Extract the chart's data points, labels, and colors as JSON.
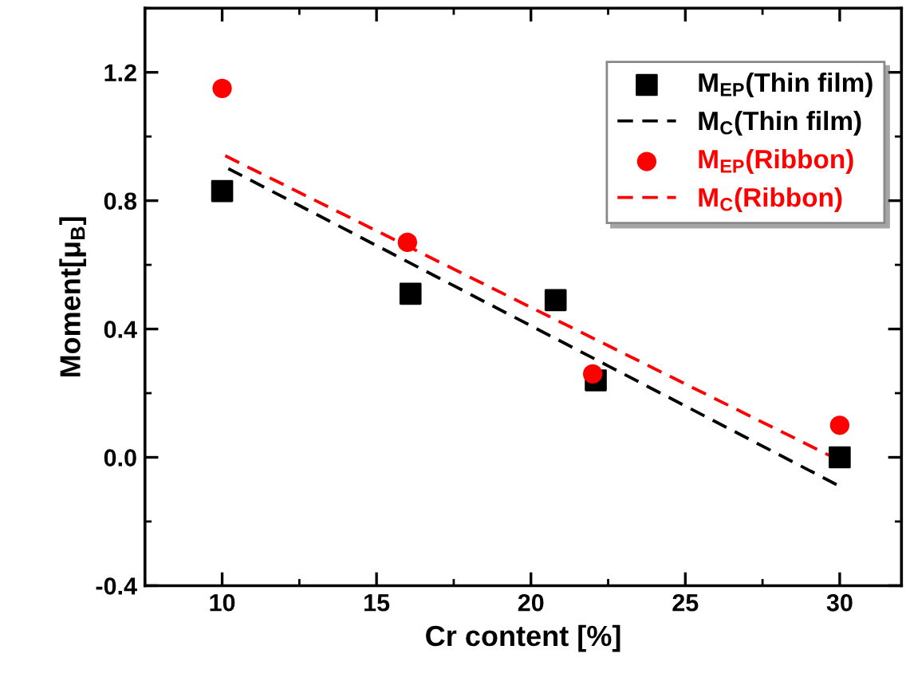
{
  "chart_data": {
    "type": "scatter",
    "xlabel": "Cr content [%]",
    "ylabel": "Moment[μ$_{B}$]",
    "xlim": [
      7.5,
      32
    ],
    "ylim": [
      -0.4,
      1.4
    ],
    "xticks": [
      10,
      15,
      20,
      25,
      30
    ],
    "yticks": [
      -0.4,
      {
        "value": 0,
        "label": "0.0"
      },
      0.4,
      0.8,
      1.2
    ],
    "legend": "top right",
    "grid": false,
    "series": [
      {
        "name": "M$_{EP}$(Thin film)",
        "marker": "square",
        "color": "#000000",
        "x": [
          10,
          16.1,
          20.8,
          22.1,
          30
        ],
        "values": [
          0.83,
          0.51,
          0.49,
          0.24,
          0.0
        ]
      },
      {
        "name": "M$_{C}$(Thin film)",
        "type": "line",
        "marker": "none",
        "line_style": "dashed",
        "color": "#000000",
        "x": [
          10.2,
          30
        ],
        "values": [
          0.9,
          -0.09
        ]
      },
      {
        "name": "M$_{EP}$(Ribbon)",
        "marker": "circle",
        "color": "#ff0000",
        "x": [
          10,
          16.0,
          22.0,
          30
        ],
        "values": [
          1.15,
          0.67,
          0.26,
          0.1
        ]
      },
      {
        "name": "M$_{C}$(Ribbon)",
        "type": "line",
        "marker": "none",
        "line_style": "dashed",
        "color": "#ff0000",
        "x": [
          10.1,
          30
        ],
        "values": [
          0.94,
          -0.01
        ]
      }
    ]
  }
}
